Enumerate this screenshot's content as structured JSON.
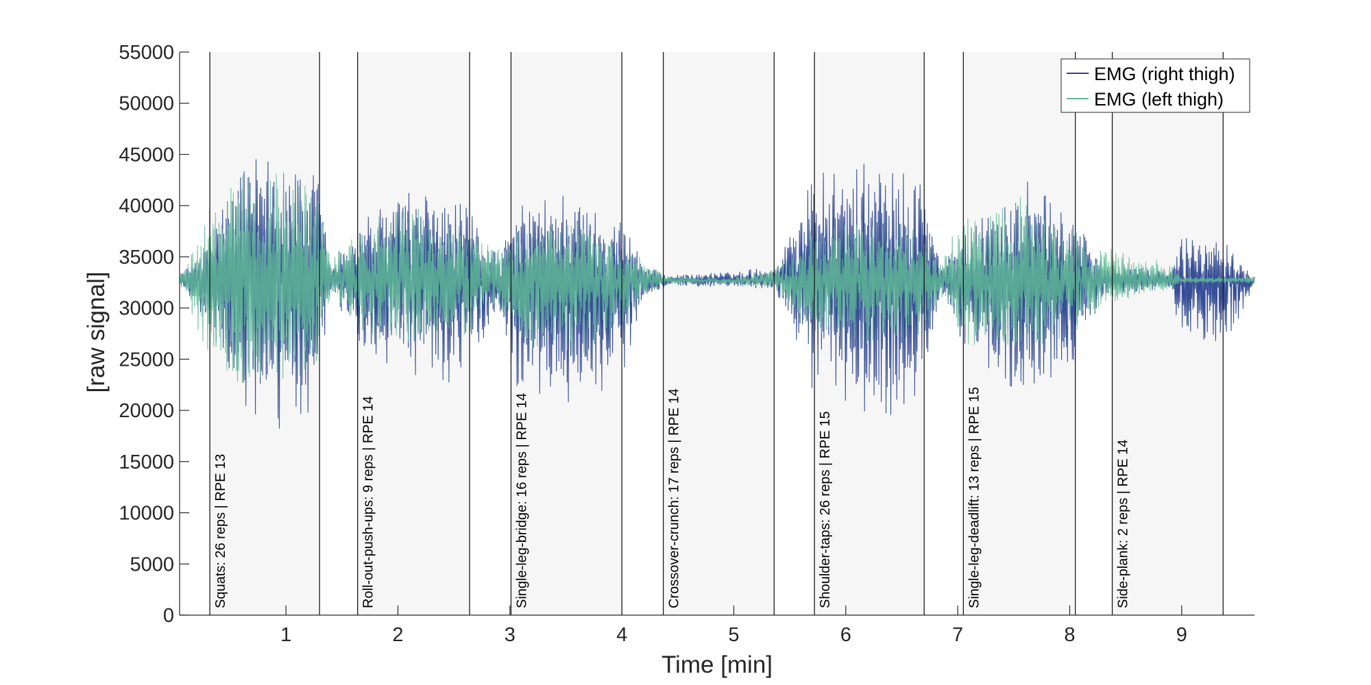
{
  "chart_data": {
    "type": "line",
    "title": "",
    "xlabel": "Time [min]",
    "ylabel": "[raw signal]",
    "xlim": [
      0.05,
      9.65
    ],
    "ylim": [
      0,
      55000
    ],
    "x_ticks": [
      "1",
      "2",
      "3",
      "4",
      "5",
      "6",
      "7",
      "8",
      "9"
    ],
    "y_ticks": [
      "0",
      "5000",
      "10000",
      "15000",
      "20000",
      "25000",
      "30000",
      "35000",
      "40000",
      "45000",
      "50000",
      "55000"
    ],
    "legend_position": "top-right",
    "grid": false,
    "colors": {
      "right_thigh": "#2b4590",
      "left_thigh": "#5fb896",
      "band_fill": "#f6f6f6",
      "band_edge": "#1a1a1a",
      "axis": "#262626"
    },
    "series": [
      {
        "name": "EMG (right thigh)",
        "baseline": 32700,
        "envelope": [
          {
            "x": 0.05,
            "low": 32300,
            "high": 33100
          },
          {
            "x": 0.32,
            "low": 28000,
            "high": 37000
          },
          {
            "x": 0.6,
            "low": 19000,
            "high": 45000
          },
          {
            "x": 1.0,
            "low": 17000,
            "high": 46000
          },
          {
            "x": 1.28,
            "low": 20000,
            "high": 44000
          },
          {
            "x": 1.4,
            "low": 31500,
            "high": 34000
          },
          {
            "x": 1.7,
            "low": 25000,
            "high": 40000
          },
          {
            "x": 2.2,
            "low": 22000,
            "high": 42000
          },
          {
            "x": 2.6,
            "low": 23000,
            "high": 40000
          },
          {
            "x": 2.9,
            "low": 30000,
            "high": 35500
          },
          {
            "x": 3.05,
            "low": 22000,
            "high": 40000
          },
          {
            "x": 3.6,
            "low": 20000,
            "high": 42000
          },
          {
            "x": 4.0,
            "low": 23000,
            "high": 39000
          },
          {
            "x": 4.2,
            "low": 31000,
            "high": 34500
          },
          {
            "x": 4.4,
            "low": 32100,
            "high": 33300
          },
          {
            "x": 5.0,
            "low": 32000,
            "high": 33600
          },
          {
            "x": 5.37,
            "low": 31800,
            "high": 34200
          },
          {
            "x": 5.7,
            "low": 22000,
            "high": 44000
          },
          {
            "x": 6.2,
            "low": 18000,
            "high": 44500
          },
          {
            "x": 6.7,
            "low": 20000,
            "high": 43000
          },
          {
            "x": 6.85,
            "low": 31500,
            "high": 34000
          },
          {
            "x": 7.1,
            "low": 25000,
            "high": 38000
          },
          {
            "x": 7.6,
            "low": 21000,
            "high": 43000
          },
          {
            "x": 8.0,
            "low": 24000,
            "high": 40000
          },
          {
            "x": 8.3,
            "low": 31000,
            "high": 34500
          },
          {
            "x": 8.9,
            "low": 32000,
            "high": 33600
          },
          {
            "x": 9.0,
            "low": 26000,
            "high": 37000
          },
          {
            "x": 9.37,
            "low": 25500,
            "high": 37500
          },
          {
            "x": 9.65,
            "low": 32300,
            "high": 33100
          }
        ]
      },
      {
        "name": "EMG (left thigh)",
        "baseline": 32700,
        "envelope": [
          {
            "x": 0.05,
            "low": 32200,
            "high": 33200
          },
          {
            "x": 0.32,
            "low": 24000,
            "high": 40000
          },
          {
            "x": 0.6,
            "low": 22000,
            "high": 44000
          },
          {
            "x": 1.0,
            "low": 22000,
            "high": 44000
          },
          {
            "x": 1.28,
            "low": 24000,
            "high": 42000
          },
          {
            "x": 1.4,
            "low": 31000,
            "high": 35000
          },
          {
            "x": 1.7,
            "low": 27000,
            "high": 39000
          },
          {
            "x": 2.2,
            "low": 26000,
            "high": 40000
          },
          {
            "x": 2.6,
            "low": 27000,
            "high": 38000
          },
          {
            "x": 2.9,
            "low": 30000,
            "high": 36000
          },
          {
            "x": 3.05,
            "low": 26000,
            "high": 38000
          },
          {
            "x": 3.6,
            "low": 25000,
            "high": 39000
          },
          {
            "x": 4.0,
            "low": 27000,
            "high": 37000
          },
          {
            "x": 4.2,
            "low": 31000,
            "high": 34800
          },
          {
            "x": 4.4,
            "low": 32200,
            "high": 33200
          },
          {
            "x": 5.0,
            "low": 32300,
            "high": 33000
          },
          {
            "x": 5.37,
            "low": 31800,
            "high": 34000
          },
          {
            "x": 5.7,
            "low": 27000,
            "high": 38000
          },
          {
            "x": 6.2,
            "low": 26000,
            "high": 39000
          },
          {
            "x": 6.7,
            "low": 27000,
            "high": 38000
          },
          {
            "x": 6.85,
            "low": 31000,
            "high": 35000
          },
          {
            "x": 7.1,
            "low": 26000,
            "high": 40000
          },
          {
            "x": 7.6,
            "low": 25000,
            "high": 41000
          },
          {
            "x": 8.0,
            "low": 27000,
            "high": 38000
          },
          {
            "x": 8.3,
            "low": 30000,
            "high": 36000
          },
          {
            "x": 8.9,
            "low": 31800,
            "high": 34500
          },
          {
            "x": 9.0,
            "low": 32400,
            "high": 33100
          },
          {
            "x": 9.37,
            "low": 32400,
            "high": 33100
          },
          {
            "x": 9.65,
            "low": 32300,
            "high": 33100
          }
        ]
      }
    ],
    "bands": [
      {
        "start": 0.32,
        "end": 1.3,
        "label": "Squats: 26 reps | RPE 13"
      },
      {
        "start": 1.64,
        "end": 2.64,
        "label": "Roll-out-push-ups: 9 reps | RPE 14"
      },
      {
        "start": 3.01,
        "end": 4.0,
        "label": "Single-leg-bridge: 16 reps | RPE 14"
      },
      {
        "start": 4.37,
        "end": 5.36,
        "label": "Crossover-crunch: 17 reps | RPE 14"
      },
      {
        "start": 5.72,
        "end": 6.7,
        "label": "Shoulder-taps: 26 reps | RPE 15"
      },
      {
        "start": 7.05,
        "end": 8.05,
        "label": "Single-leg-deadlift: 13 reps | RPE 15"
      },
      {
        "start": 8.38,
        "end": 9.37,
        "label": "Side-plank: 2 reps | RPE 14"
      }
    ],
    "legend": [
      "EMG (right thigh)",
      "EMG (left thigh)"
    ]
  }
}
